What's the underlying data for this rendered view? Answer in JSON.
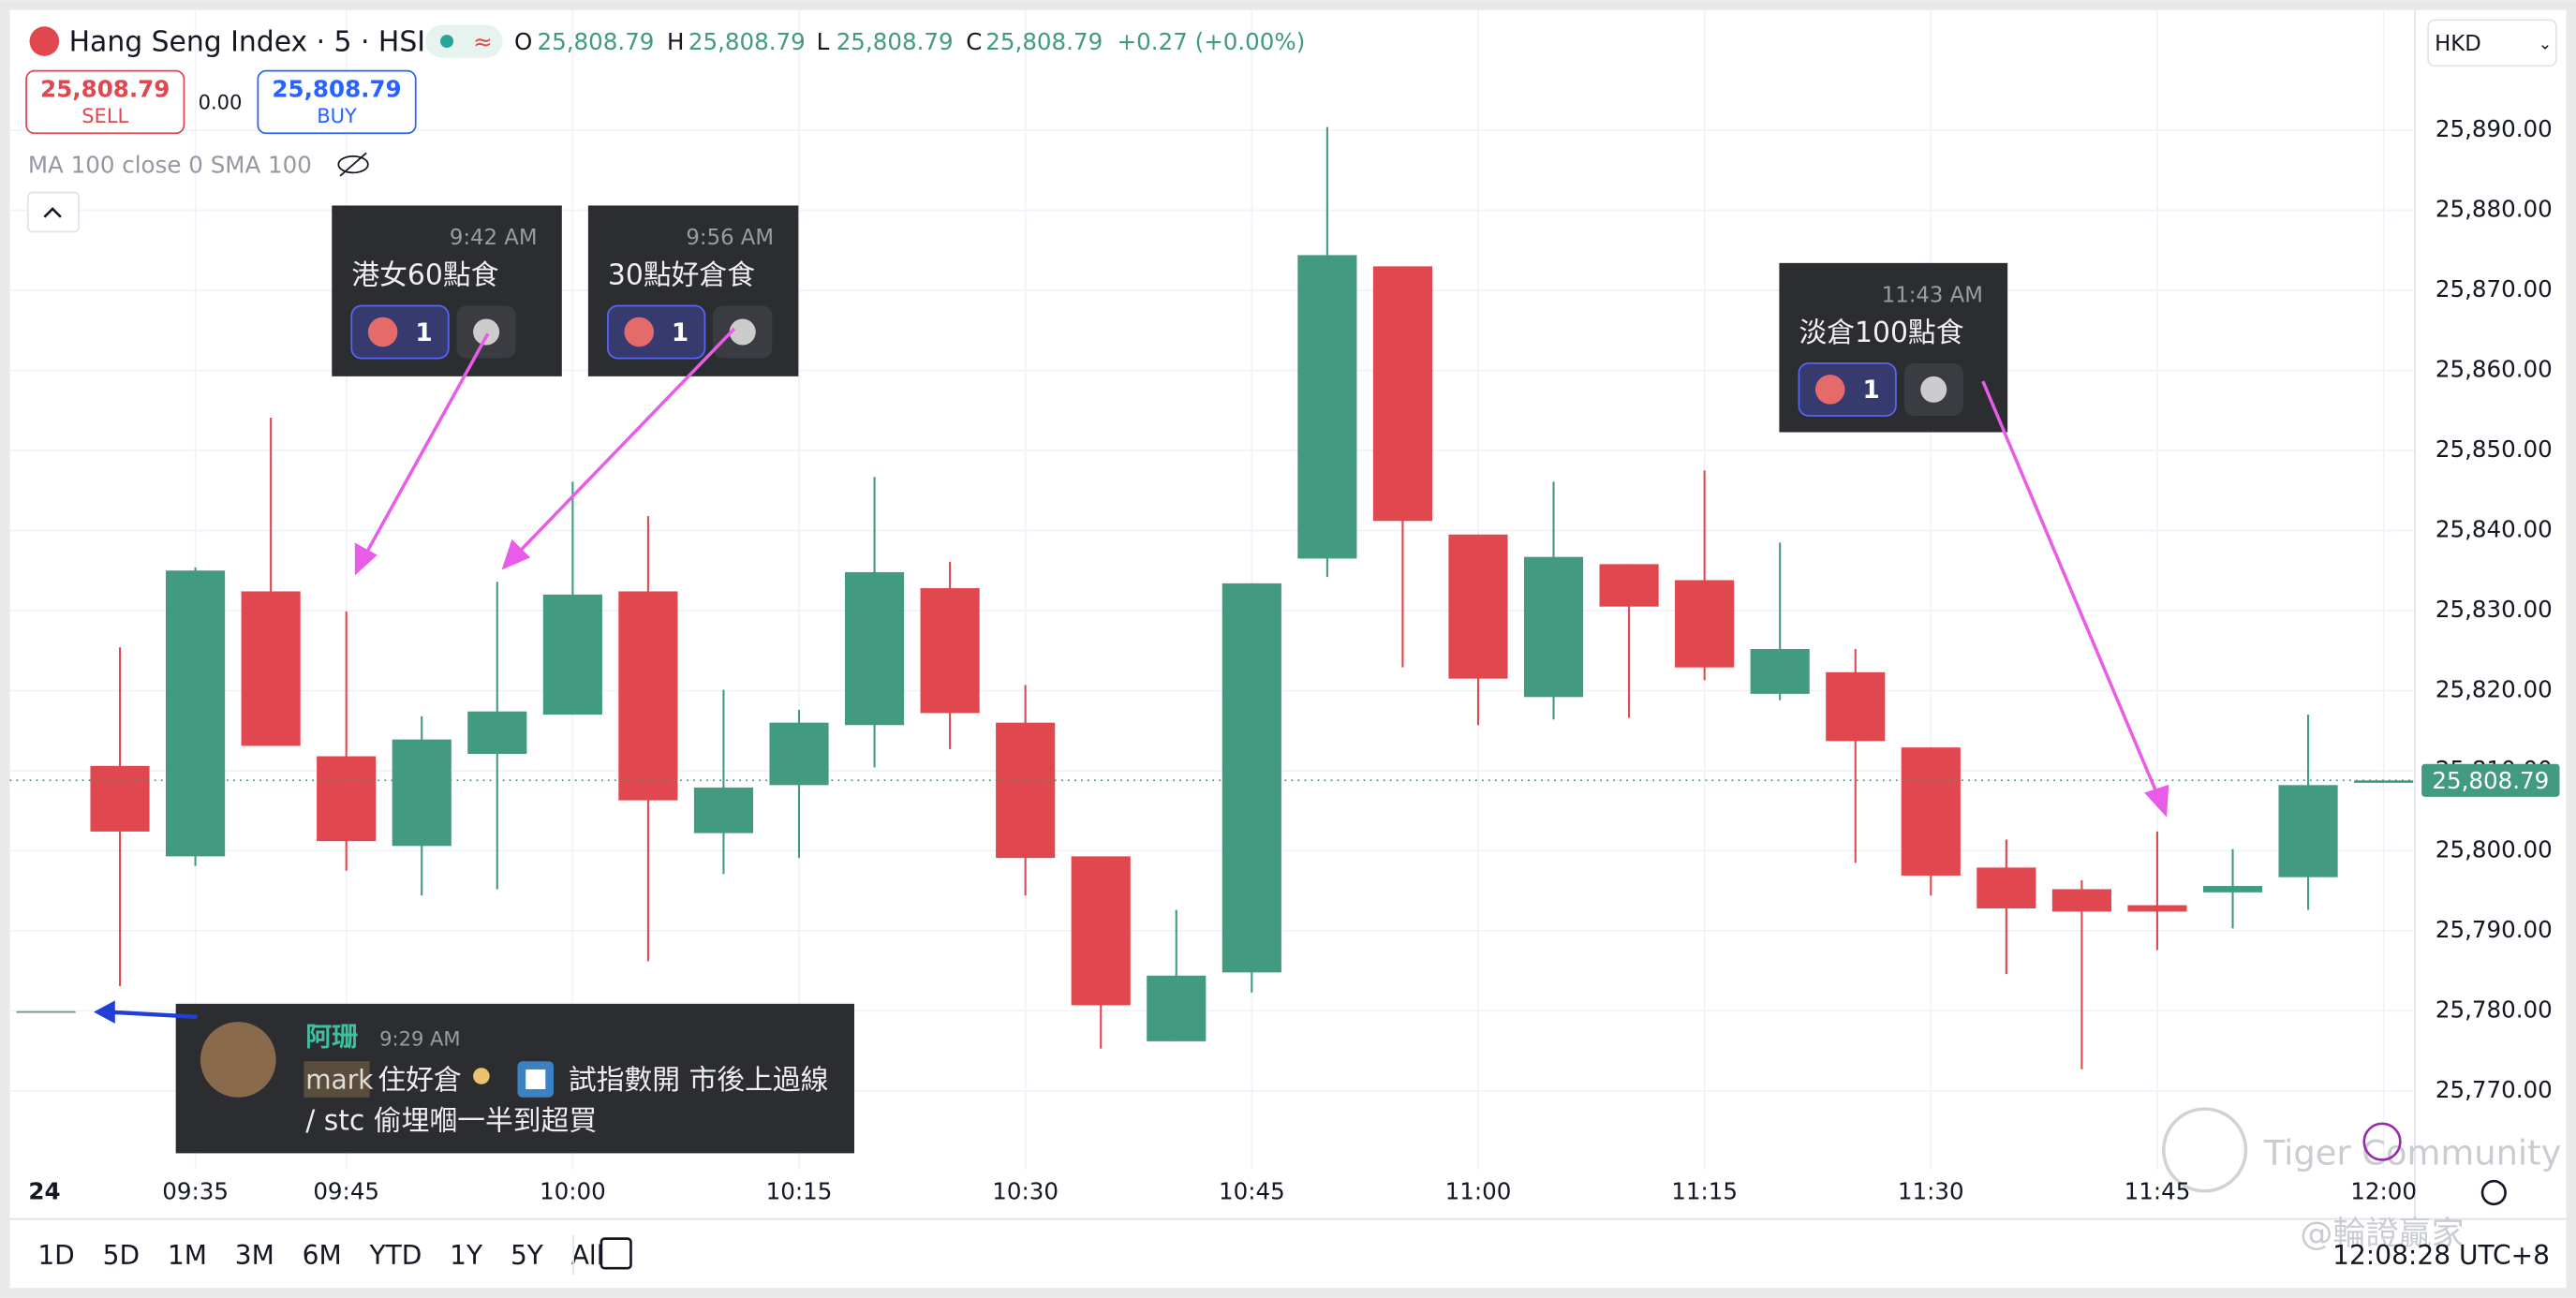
{
  "header": {
    "title": "Hang Seng Index · 5 · HSI",
    "o_label": "O",
    "o": "25,808.79",
    "h_label": "H",
    "h": "25,808.79",
    "l_label": "L",
    "l": "25,808.79",
    "c_label": "C",
    "c": "25,808.79",
    "change": "+0.27 (+0.00%)",
    "currency": "HKD"
  },
  "trade": {
    "sell_price": "25,808.79",
    "sell": "SELL",
    "spread": "0.00",
    "buy_price": "25,808.79",
    "buy": "BUY"
  },
  "indicator": "MA 100 close 0 SMA 100",
  "comments": [
    {
      "time": "9:42 AM",
      "text": "港女60點食",
      "count": 1
    },
    {
      "time": "9:56 AM",
      "text": "30點好倉食",
      "count": 1
    },
    {
      "time": "11:43 AM",
      "text": "淡倉100點食",
      "count": 1
    }
  ],
  "chat": {
    "name": "阿珊",
    "time": "9:29 AM",
    "tag": "mark",
    "line1a": "住好倉",
    "line1b": "試指數開 市後上過線",
    "line2": "/ stc 偷埋嗰一半到超買"
  },
  "timeframes": [
    "1D",
    "5D",
    "1M",
    "3M",
    "6M",
    "YTD",
    "1Y",
    "5Y",
    "All"
  ],
  "clock": "12:08:28 UTC+8",
  "watermarks": [
    "Tiger Community",
    "@輪證贏家"
  ],
  "chart_data": {
    "type": "candlestick",
    "date_label": "24",
    "categories": [
      null,
      "09:35",
      null,
      "09:45",
      null,
      null,
      "10:00",
      null,
      null,
      "10:15",
      null,
      null,
      "10:30",
      null,
      null,
      "10:45",
      null,
      null,
      "11:00",
      null,
      null,
      "11:15",
      null,
      null,
      "11:30",
      null,
      null,
      "11:45",
      null,
      null,
      "12:00"
    ],
    "open": [
      25810.6,
      25799.3,
      25832.4,
      25811.8,
      25800.6,
      25812.1,
      25817.0,
      25832.4,
      25802.2,
      25808.2,
      25815.7,
      25832.8,
      25816.0,
      25799.3,
      25776.2,
      25784.8,
      25836.5,
      25873.0,
      25839.5,
      25819.2,
      25835.8,
      25833.8,
      25819.6,
      25822.3,
      25812.9,
      25797.9,
      25795.2,
      25793.2,
      25794.8,
      25796.7,
      25808.79
    ],
    "high": [
      25825.4,
      25835.4,
      25854.1,
      25829.9,
      25816.8,
      25833.6,
      25846.1,
      25841.8,
      25820.1,
      25817.6,
      25846.7,
      25836.1,
      25820.7,
      25799.3,
      25792.6,
      25833.4,
      25890.4,
      25873.0,
      25839.5,
      25846.1,
      25835.8,
      25847.5,
      25838.5,
      25825.2,
      25812.9,
      25801.4,
      25796.3,
      25802.4,
      25800.2,
      25817.0,
      25808.79
    ],
    "low": [
      25783.1,
      25798.1,
      25813.1,
      25797.5,
      25794.4,
      25795.2,
      25817.0,
      25786.2,
      25797.1,
      25799.1,
      25810.4,
      25812.7,
      25794.4,
      25775.3,
      25776.2,
      25782.3,
      25834.2,
      25822.9,
      25815.7,
      25816.4,
      25816.6,
      25821.3,
      25818.8,
      25798.5,
      25794.4,
      25784.6,
      25772.7,
      25787.6,
      25790.3,
      25792.6,
      25808.79
    ],
    "close": [
      25802.4,
      25835.0,
      25813.1,
      25801.2,
      25813.9,
      25817.4,
      25832.0,
      25806.3,
      25807.9,
      25816.0,
      25834.8,
      25817.2,
      25799.1,
      25780.7,
      25784.4,
      25833.4,
      25874.4,
      25841.2,
      25821.5,
      25836.7,
      25830.5,
      25822.9,
      25825.2,
      25813.7,
      25796.9,
      25792.8,
      25792.4,
      25792.4,
      25795.6,
      25808.2,
      25808.79
    ],
    "up_color": "#429a80",
    "down_color": "#e0474f",
    "grid": true,
    "ylim": [
      25761.6,
      25904.6
    ],
    "yticks": [
      {
        "value": 25770,
        "label": "25,770.00"
      },
      {
        "value": 25780,
        "label": "25,780.00"
      },
      {
        "value": 25790,
        "label": "25,790.00"
      },
      {
        "value": 25800,
        "label": "25,800.00"
      },
      {
        "value": 25810,
        "label": "25,810.00"
      },
      {
        "value": 25820,
        "label": "25,820.00"
      },
      {
        "value": 25830,
        "label": "25,830.00"
      },
      {
        "value": 25840,
        "label": "25,840.00"
      },
      {
        "value": 25850,
        "label": "25,850.00"
      },
      {
        "value": 25860,
        "label": "25,860.00"
      },
      {
        "value": 25870,
        "label": "25,870.00"
      },
      {
        "value": 25880,
        "label": "25,880.00"
      },
      {
        "value": 25890,
        "label": "25,890.00"
      }
    ],
    "last_price": {
      "value": 25808.79,
      "label": "25,808.79"
    }
  }
}
